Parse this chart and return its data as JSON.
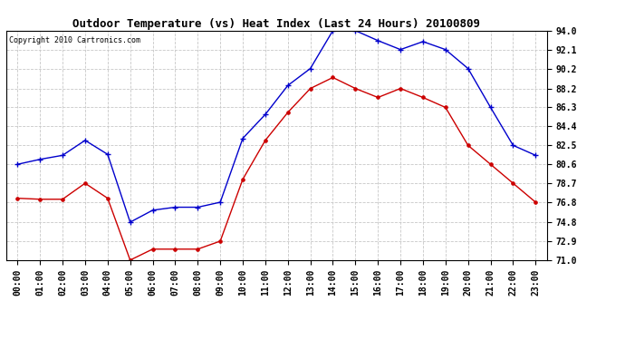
{
  "title": "Outdoor Temperature (vs) Heat Index (Last 24 Hours) 20100809",
  "copyright": "Copyright 2010 Cartronics.com",
  "hours": [
    "00:00",
    "01:00",
    "02:00",
    "03:00",
    "04:00",
    "05:00",
    "06:00",
    "07:00",
    "08:00",
    "09:00",
    "10:00",
    "11:00",
    "12:00",
    "13:00",
    "14:00",
    "15:00",
    "16:00",
    "17:00",
    "18:00",
    "19:00",
    "20:00",
    "21:00",
    "22:00",
    "23:00"
  ],
  "blue_data": [
    80.6,
    81.1,
    81.5,
    83.0,
    81.6,
    74.8,
    76.0,
    76.3,
    76.3,
    76.8,
    83.2,
    85.6,
    88.5,
    90.2,
    94.0,
    94.0,
    93.0,
    92.1,
    92.9,
    92.1,
    90.2,
    86.3,
    82.5,
    81.5
  ],
  "red_data": [
    77.2,
    77.1,
    77.1,
    78.7,
    77.2,
    71.0,
    72.1,
    72.1,
    72.1,
    72.9,
    79.1,
    83.0,
    85.8,
    88.2,
    89.3,
    88.2,
    87.3,
    88.2,
    87.3,
    86.3,
    82.5,
    80.6,
    78.7,
    76.8
  ],
  "blue_color": "#0000cc",
  "red_color": "#cc0000",
  "bg_color": "#ffffff",
  "grid_color": "#c8c8c8",
  "ylim_min": 71.0,
  "ylim_max": 94.0,
  "yticks": [
    71.0,
    72.9,
    74.8,
    76.8,
    78.7,
    80.6,
    82.5,
    84.4,
    86.3,
    88.2,
    90.2,
    92.1,
    94.0
  ],
  "title_fontsize": 9,
  "tick_fontsize": 7,
  "copyright_fontsize": 6
}
